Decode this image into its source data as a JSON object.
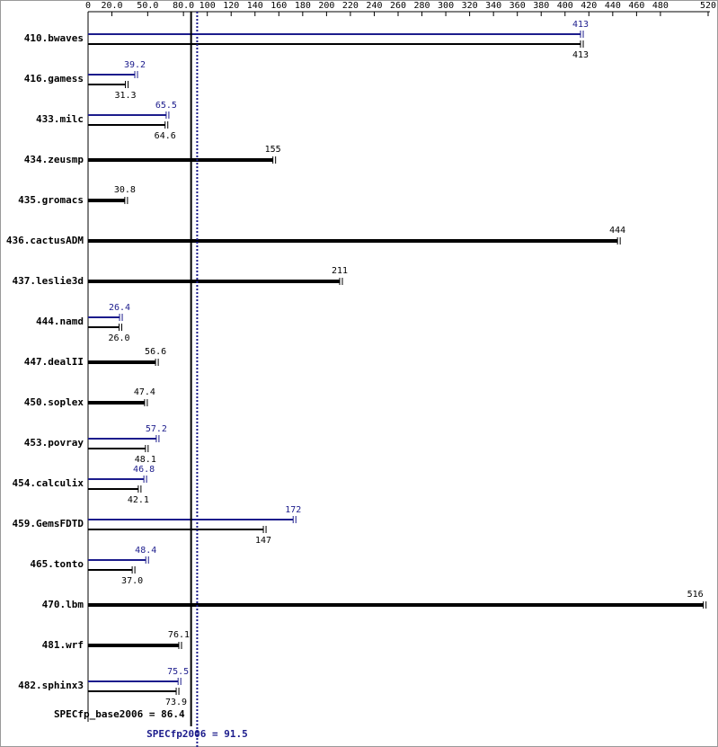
{
  "chart_data": {
    "type": "bar",
    "orientation": "horizontal",
    "categories": [
      "410.bwaves",
      "416.gamess",
      "433.milc",
      "434.zeusmp",
      "435.gromacs",
      "436.cactusADM",
      "437.leslie3d",
      "444.namd",
      "447.dealII",
      "450.soplex",
      "453.povray",
      "454.calculix",
      "459.GemsFDTD",
      "465.tonto",
      "470.lbm",
      "481.wrf",
      "482.sphinx3"
    ],
    "series": [
      {
        "color": "#1c1c8c",
        "values": [
          413,
          39.2,
          65.5,
          null,
          null,
          null,
          null,
          26.4,
          null,
          null,
          57.2,
          46.8,
          172,
          48.4,
          null,
          null,
          75.5
        ],
        "value_labels": [
          "413",
          "39.2",
          "65.5",
          null,
          null,
          null,
          null,
          "26.4",
          null,
          null,
          "57.2",
          "46.8",
          "172",
          "48.4",
          null,
          null,
          "75.5"
        ]
      },
      {
        "color": "#000000",
        "values": [
          413,
          31.3,
          64.6,
          155,
          30.8,
          444,
          211,
          26.0,
          56.6,
          47.4,
          48.1,
          42.1,
          147,
          37.0,
          516,
          76.1,
          73.9
        ],
        "value_labels": [
          "413",
          "31.3",
          "64.6",
          "155",
          "30.8",
          "444",
          "211",
          "26.0",
          "56.6",
          "47.4",
          "48.1",
          "42.1",
          "147",
          "37.0",
          "516",
          "76.1",
          "73.9"
        ]
      }
    ],
    "xlim": [
      0,
      520
    ],
    "xticks": [
      0,
      {
        "value": 20,
        "label": "20.0"
      },
      {
        "value": 50,
        "label": "50.0"
      },
      {
        "value": 80,
        "label": "80.0"
      },
      100,
      120,
      140,
      160,
      180,
      200,
      220,
      240,
      260,
      280,
      300,
      320,
      340,
      360,
      380,
      400,
      420,
      440,
      460,
      480,
      520
    ],
    "reference_lines": [
      {
        "value": 86.4,
        "label": "SPECfp_base2006 = 86.4",
        "color": "#000000",
        "style": "solid"
      },
      {
        "value": 91.5,
        "label": "SPECfp2006 = 91.5",
        "color": "#1c1c8c",
        "style": "dotted"
      }
    ]
  }
}
